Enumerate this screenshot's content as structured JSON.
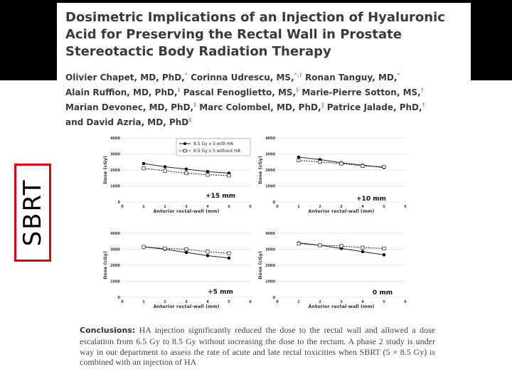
{
  "paper": {
    "title": "Dosimetric Implications of an Injection of Hyaluronic Acid for Preserving the Rectal Wall in Prostate Stereotactic Body Radiation Therapy",
    "authors": [
      {
        "name": "Olivier Chapet, MD, PhD,",
        "sup": "*"
      },
      {
        "name": "Corinna Udrescu, MS,",
        "sup": "*,†"
      },
      {
        "name": "Ronan Tanguy, MD,",
        "sup": "*"
      },
      {
        "name": "Alain Ruffion, MD, PhD,",
        "sup": "‡"
      },
      {
        "name": "Pascal Fenoglietto, MS,",
        "sup": "§"
      },
      {
        "name": "Marie-Pierre Sotton, MS,",
        "sup": "†"
      },
      {
        "name": "Marian Devonec, MD, PhD,",
        "sup": "‡"
      },
      {
        "name": "Marc Colombel, MD, PhD,",
        "sup": "‖"
      },
      {
        "name": "Patrice Jalade, PhD,",
        "sup": "†"
      },
      {
        "name": "and David Azria, MD, PhD",
        "sup": "§"
      }
    ],
    "conclusions_label": "Conclusions:",
    "conclusions_text": "HA injection significantly reduced the dose to the rectal wall and allowed a dose escalation from 6.5 Gy to 8.5 Gy without increasing the dose to the rectum. A phase 2 study is under way in our department to assess the rate of acute and late rectal toxicities when SBRT (5 × 8.5 Gy) is combined with an injection of HA"
  },
  "side_label": "SBRT",
  "colors": {
    "sbrt_border": "#e00000",
    "line": "#222222"
  },
  "chart_data": [
    {
      "type": "line",
      "annotation": "+15 mm",
      "xlabel": "Anterior rectal-wall (mm)",
      "ylabel": "Dose (cGy)",
      "xlim": [
        0,
        6
      ],
      "ylim": [
        0,
        4000
      ],
      "xticks": [
        "0",
        "1",
        "2",
        "3",
        "4",
        "5",
        "6"
      ],
      "yticks": [
        "0",
        "1000",
        "2000",
        "3000",
        "4000"
      ],
      "legend": [
        "8.5 Gy x 5 with HA",
        "6.5 Gy x 5 without HA"
      ],
      "series": [
        {
          "name": "8.5 Gy x 5 with HA",
          "x": [
            1,
            2,
            3,
            4,
            5
          ],
          "values": [
            2400,
            2200,
            2050,
            1900,
            1800
          ]
        },
        {
          "name": "6.5 Gy x 5 without HA",
          "x": [
            1,
            2,
            3,
            4,
            5
          ],
          "values": [
            2100,
            1950,
            1800,
            1700,
            1650
          ]
        }
      ]
    },
    {
      "type": "line",
      "annotation": "+10 mm",
      "xlabel": "Anterior rectal-wall (mm)",
      "ylabel": "Dose (cGy)",
      "xlim": [
        0,
        6
      ],
      "ylim": [
        0,
        4000
      ],
      "xticks": [
        "0",
        "1",
        "2",
        "3",
        "4",
        "5",
        "6"
      ],
      "yticks": [
        "0",
        "1000",
        "2000",
        "3000",
        "4000"
      ],
      "series": [
        {
          "name": "8.5 Gy x 5 with HA",
          "x": [
            1,
            2,
            3,
            4,
            5
          ],
          "values": [
            2800,
            2650,
            2450,
            2300,
            2150
          ]
        },
        {
          "name": "6.5 Gy x 5 without HA",
          "x": [
            1,
            2,
            3,
            4,
            5
          ],
          "values": [
            2600,
            2500,
            2400,
            2250,
            2200
          ]
        }
      ]
    },
    {
      "type": "line",
      "annotation": "+5 mm",
      "xlabel": "Anterior rectal-wall (mm)",
      "ylabel": "Dose (cGy)",
      "xlim": [
        0,
        6
      ],
      "ylim": [
        0,
        4000
      ],
      "xticks": [
        "0",
        "1",
        "2",
        "3",
        "4",
        "5",
        "6"
      ],
      "yticks": [
        "0",
        "1000",
        "2000",
        "3000",
        "4000"
      ],
      "series": [
        {
          "name": "8.5 Gy x 5 with HA",
          "x": [
            1,
            2,
            3,
            4,
            5
          ],
          "values": [
            3150,
            3000,
            2800,
            2600,
            2450
          ]
        },
        {
          "name": "6.5 Gy x 5 without HA",
          "x": [
            1,
            2,
            3,
            4,
            5
          ],
          "values": [
            3150,
            3050,
            3000,
            2850,
            2750
          ]
        }
      ]
    },
    {
      "type": "line",
      "annotation": "0 mm",
      "xlabel": "Anterior rectal-wall (mm)",
      "ylabel": "Dose (cGy)",
      "xlim": [
        0,
        6
      ],
      "ylim": [
        0,
        4000
      ],
      "xticks": [
        "0",
        "1",
        "2",
        "3",
        "4",
        "5",
        "6"
      ],
      "yticks": [
        "0",
        "1000",
        "2000",
        "3000",
        "4000"
      ],
      "series": [
        {
          "name": "8.5 Gy x 5 with HA",
          "x": [
            1,
            2,
            3,
            4,
            5
          ],
          "values": [
            3400,
            3250,
            3050,
            2850,
            2650
          ]
        },
        {
          "name": "6.5 Gy x 5 without HA",
          "x": [
            1,
            2,
            3,
            4,
            5
          ],
          "values": [
            3350,
            3250,
            3200,
            3100,
            3050
          ]
        }
      ]
    }
  ]
}
